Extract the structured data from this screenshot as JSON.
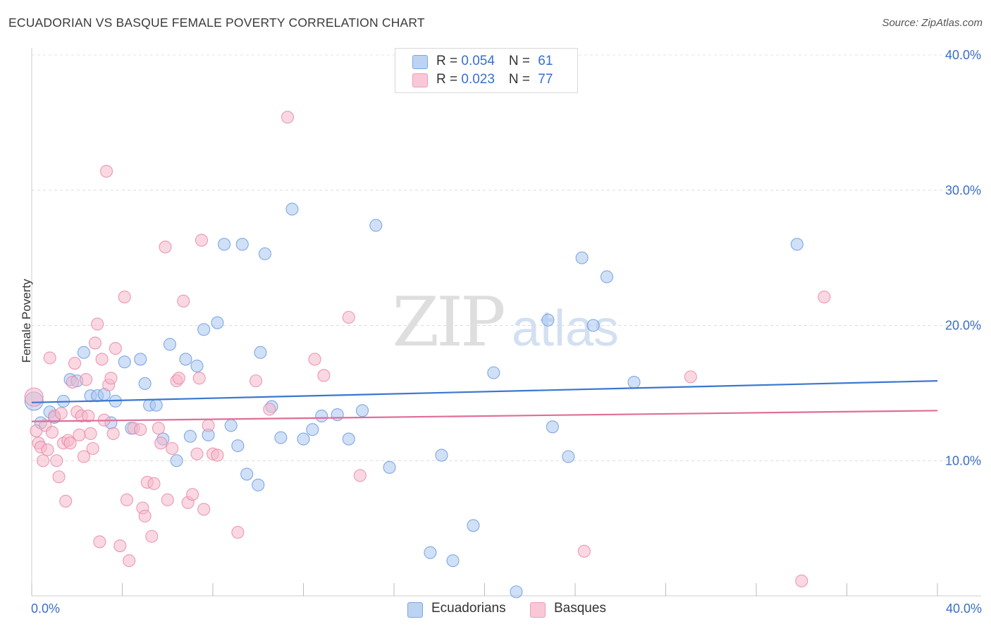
{
  "header": {
    "title": "ECUADORIAN VS BASQUE FEMALE POVERTY CORRELATION CHART",
    "source": "Source: ZipAtlas.com"
  },
  "legend": {
    "row1": {
      "r_label": "R = ",
      "r_value": "0.054",
      "n_label": "N = ",
      "n_value": "61"
    },
    "row2": {
      "r_label": "R = ",
      "r_value": "0.023",
      "n_label": "N = ",
      "n_value": "77"
    }
  },
  "watermark": {
    "zip": "ZIP",
    "atlas": "atlas"
  },
  "chart_data": {
    "type": "scatter",
    "ylabel": "Female Poverty",
    "xlim": [
      0,
      40
    ],
    "ylim": [
      0,
      40
    ],
    "x_tick_labels": [
      "0.0%",
      "40.0%"
    ],
    "y_ticks": [
      10,
      20,
      30,
      40
    ],
    "y_tick_labels": [
      "10.0%",
      "20.0%",
      "30.0%",
      "40.0%"
    ],
    "grid": true,
    "legend_position": "top-center",
    "series": [
      {
        "name": "Ecuadorians",
        "color": "#a9c6f0",
        "stroke": "#6d9be0",
        "line_color": "#3a77d0",
        "trend": [
          [
            0,
            14.3
          ],
          [
            40,
            15.9
          ]
        ],
        "points": [
          [
            0.1,
            14.4
          ],
          [
            0.4,
            12.8
          ],
          [
            0.8,
            13.6
          ],
          [
            1.0,
            13.2
          ],
          [
            1.4,
            14.4
          ],
          [
            1.7,
            16.0
          ],
          [
            2.0,
            15.9
          ],
          [
            2.3,
            18.0
          ],
          [
            2.6,
            14.8
          ],
          [
            2.9,
            14.8
          ],
          [
            3.2,
            14.9
          ],
          [
            3.5,
            12.8
          ],
          [
            3.7,
            14.4
          ],
          [
            4.1,
            17.3
          ],
          [
            4.4,
            12.4
          ],
          [
            4.8,
            17.5
          ],
          [
            5.0,
            15.7
          ],
          [
            5.2,
            14.1
          ],
          [
            5.5,
            14.1
          ],
          [
            5.8,
            11.6
          ],
          [
            6.1,
            18.6
          ],
          [
            6.4,
            10.0
          ],
          [
            6.8,
            17.5
          ],
          [
            7.0,
            11.8
          ],
          [
            7.3,
            17.0
          ],
          [
            7.6,
            19.7
          ],
          [
            7.8,
            11.9
          ],
          [
            8.2,
            20.2
          ],
          [
            8.5,
            26.0
          ],
          [
            8.8,
            12.6
          ],
          [
            9.1,
            11.1
          ],
          [
            9.3,
            26.0
          ],
          [
            9.5,
            9.0
          ],
          [
            10.0,
            8.2
          ],
          [
            10.1,
            18.0
          ],
          [
            10.3,
            25.3
          ],
          [
            10.6,
            14.0
          ],
          [
            11.0,
            11.7
          ],
          [
            11.5,
            28.6
          ],
          [
            12.0,
            11.6
          ],
          [
            12.4,
            12.3
          ],
          [
            12.8,
            13.3
          ],
          [
            13.5,
            13.4
          ],
          [
            14.0,
            11.6
          ],
          [
            14.6,
            13.7
          ],
          [
            15.2,
            27.4
          ],
          [
            15.8,
            9.5
          ],
          [
            17.6,
            3.2
          ],
          [
            18.1,
            10.4
          ],
          [
            18.6,
            2.6
          ],
          [
            19.5,
            5.2
          ],
          [
            20.4,
            16.5
          ],
          [
            21.4,
            0.3
          ],
          [
            22.8,
            20.4
          ],
          [
            23.0,
            12.5
          ],
          [
            23.7,
            10.3
          ],
          [
            24.3,
            25.0
          ],
          [
            24.8,
            20.0
          ],
          [
            25.4,
            23.6
          ],
          [
            26.6,
            15.8
          ],
          [
            33.8,
            26.0
          ]
        ]
      },
      {
        "name": "Basques",
        "color": "#f5b8cb",
        "stroke": "#e88aa8",
        "line_color": "#e06d98",
        "trend": [
          [
            0,
            12.9
          ],
          [
            40,
            13.7
          ]
        ],
        "points": [
          [
            0.1,
            14.7
          ],
          [
            0.2,
            12.2
          ],
          [
            0.3,
            11.3
          ],
          [
            0.4,
            11.0
          ],
          [
            0.5,
            10.0
          ],
          [
            0.6,
            12.6
          ],
          [
            0.7,
            10.8
          ],
          [
            0.8,
            17.6
          ],
          [
            0.9,
            12.1
          ],
          [
            1.0,
            13.3
          ],
          [
            1.1,
            10.0
          ],
          [
            1.2,
            8.8
          ],
          [
            1.3,
            13.5
          ],
          [
            1.4,
            11.3
          ],
          [
            1.5,
            7.0
          ],
          [
            1.6,
            11.5
          ],
          [
            1.7,
            11.3
          ],
          [
            1.8,
            15.8
          ],
          [
            1.9,
            17.2
          ],
          [
            2.0,
            13.6
          ],
          [
            2.1,
            11.9
          ],
          [
            2.2,
            13.3
          ],
          [
            2.3,
            10.3
          ],
          [
            2.4,
            16.0
          ],
          [
            2.5,
            13.3
          ],
          [
            2.6,
            12.0
          ],
          [
            2.7,
            10.9
          ],
          [
            2.8,
            18.7
          ],
          [
            2.9,
            20.1
          ],
          [
            3.0,
            4.0
          ],
          [
            3.1,
            17.5
          ],
          [
            3.2,
            13.0
          ],
          [
            3.3,
            31.4
          ],
          [
            3.4,
            15.6
          ],
          [
            3.5,
            16.1
          ],
          [
            3.6,
            12.0
          ],
          [
            3.7,
            18.3
          ],
          [
            3.9,
            3.7
          ],
          [
            4.1,
            22.1
          ],
          [
            4.2,
            7.1
          ],
          [
            4.3,
            2.6
          ],
          [
            4.5,
            12.4
          ],
          [
            4.8,
            12.3
          ],
          [
            4.9,
            6.5
          ],
          [
            5.0,
            5.9
          ],
          [
            5.1,
            8.4
          ],
          [
            5.3,
            4.4
          ],
          [
            5.4,
            8.3
          ],
          [
            5.6,
            12.4
          ],
          [
            5.7,
            11.3
          ],
          [
            5.9,
            25.8
          ],
          [
            6.0,
            7.1
          ],
          [
            6.2,
            10.9
          ],
          [
            6.4,
            15.9
          ],
          [
            6.5,
            16.1
          ],
          [
            6.7,
            21.8
          ],
          [
            6.9,
            6.9
          ],
          [
            7.1,
            7.5
          ],
          [
            7.3,
            10.5
          ],
          [
            7.4,
            16.1
          ],
          [
            7.5,
            26.3
          ],
          [
            7.6,
            6.4
          ],
          [
            7.8,
            12.6
          ],
          [
            8.0,
            10.5
          ],
          [
            8.2,
            10.4
          ],
          [
            9.1,
            4.7
          ],
          [
            9.9,
            15.9
          ],
          [
            10.5,
            13.8
          ],
          [
            11.3,
            35.4
          ],
          [
            12.5,
            17.5
          ],
          [
            12.9,
            16.3
          ],
          [
            14.0,
            20.6
          ],
          [
            14.5,
            8.9
          ],
          [
            24.4,
            3.3
          ],
          [
            29.1,
            16.2
          ],
          [
            34.0,
            1.1
          ],
          [
            35.0,
            22.1
          ]
        ]
      }
    ]
  }
}
